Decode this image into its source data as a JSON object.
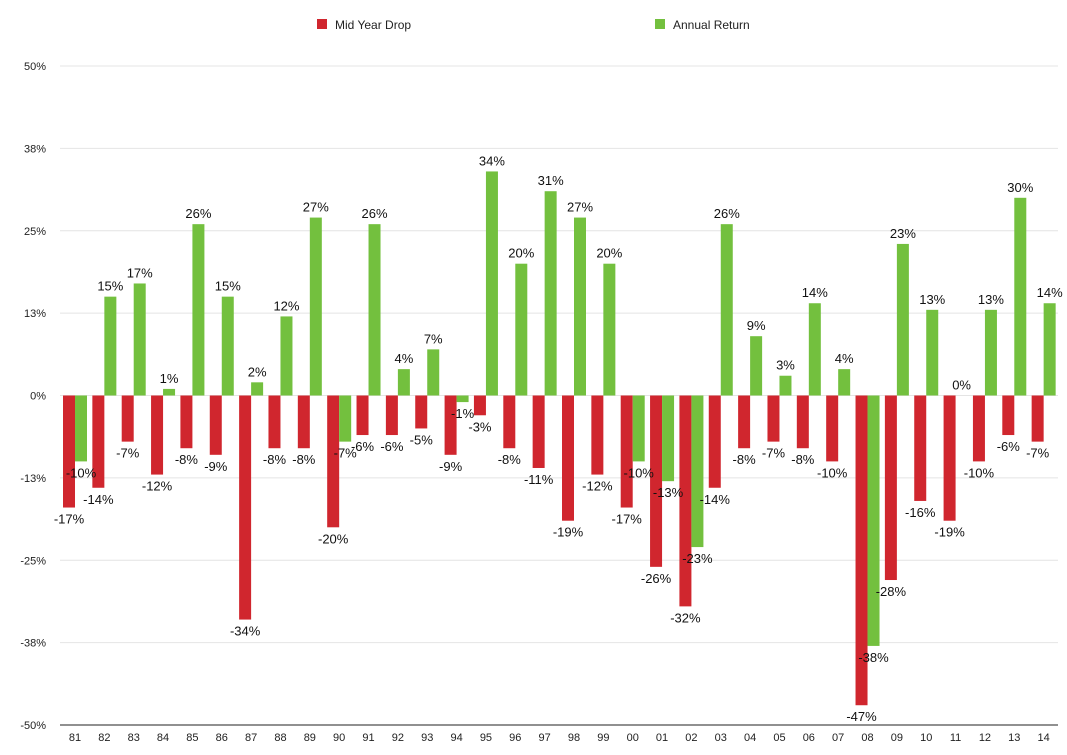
{
  "chart_data": {
    "type": "bar",
    "title": "",
    "xlabel": "",
    "ylabel": "",
    "ylim": [
      -50,
      50
    ],
    "yticks": [
      50,
      37.5,
      25,
      12.5,
      0,
      -12.5,
      -25,
      -37.5,
      -50
    ],
    "ytick_labels": [
      "50%",
      "38%",
      "25%",
      "13%",
      "0%",
      "-13%",
      "-25%",
      "-38%",
      "-50%"
    ],
    "legend": "top",
    "categories": [
      "81",
      "82",
      "83",
      "84",
      "85",
      "86",
      "87",
      "88",
      "89",
      "90",
      "91",
      "92",
      "93",
      "94",
      "95",
      "96",
      "97",
      "98",
      "99",
      "00",
      "01",
      "02",
      "03",
      "04",
      "05",
      "06",
      "07",
      "08",
      "09",
      "10",
      "11",
      "12",
      "13",
      "14"
    ],
    "series": [
      {
        "name": "Mid Year Drop",
        "color": "#d0262e",
        "values": [
          -17,
          -14,
          -7,
          -12,
          -8,
          -9,
          -34,
          -8,
          -8,
          -20,
          -6,
          -6,
          -5,
          -9,
          -3,
          -8,
          -11,
          -19,
          -12,
          -17,
          -26,
          -32,
          -14,
          -8,
          -7,
          -8,
          -10,
          -47,
          -28,
          -16,
          -19,
          -10,
          -6,
          -7
        ],
        "labels": [
          "-17%",
          "-14%",
          "-7%",
          "-12%",
          "-8%",
          "-9%",
          "-34%",
          "-8%",
          "-8%",
          "-20%",
          "-6%",
          "-6%",
          "-5%",
          "-9%",
          "-3%",
          "-8%",
          "-11%",
          "-19%",
          "-12%",
          "-17%",
          "-26%",
          "-32%",
          "-14%",
          "-8%",
          "-7%",
          "-8%",
          "-10%",
          "-47%",
          "-28%",
          "-16%",
          "-19%",
          "-10%",
          "-6%",
          "-7%"
        ]
      },
      {
        "name": "Annual Return",
        "color": "#73c03e",
        "values": [
          -10,
          15,
          17,
          1,
          26,
          15,
          2,
          12,
          27,
          -7,
          26,
          4,
          7,
          -1,
          34,
          20,
          31,
          27,
          20,
          -10,
          -13,
          -23,
          26,
          9,
          3,
          14,
          4,
          -38,
          23,
          13,
          0,
          13,
          30,
          14
        ],
        "labels": [
          "-10%",
          "15%",
          "17%",
          "1%",
          "26%",
          "15%",
          "2%",
          "12%",
          "27%",
          "-7%",
          "26%",
          "4%",
          "7%",
          "-1%",
          "34%",
          "20%",
          "31%",
          "27%",
          "20%",
          "-10%",
          "-13%",
          "-23%",
          "26%",
          "9%",
          "3%",
          "14%",
          "4%",
          "-38%",
          "23%",
          "13%",
          "0%",
          "13%",
          "30%",
          "14%"
        ]
      }
    ]
  }
}
